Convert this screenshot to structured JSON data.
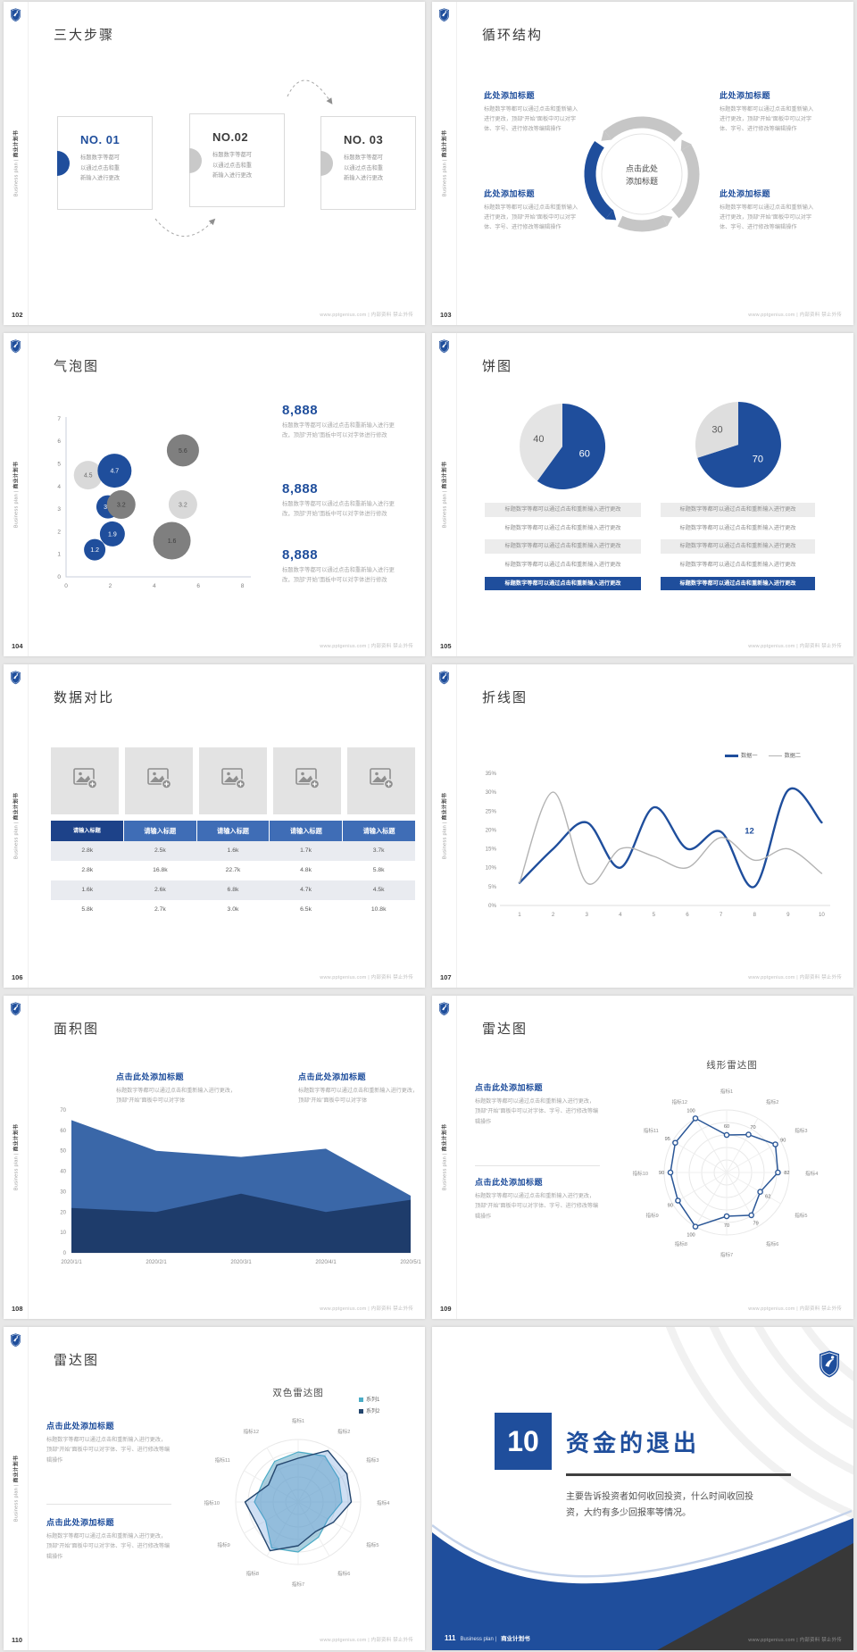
{
  "footer": {
    "url": "www.pptgenius.com | 内部资料 禁止外传"
  },
  "sidebar": {
    "en": "Business plan |",
    "zh": "商业计划书"
  },
  "slides": {
    "s102": {
      "page": "102",
      "title": "三大步骤",
      "steps": [
        {
          "no": "NO. 01",
          "body": "标题数字等都可\n以通过点击和重\n新输入进行更改"
        },
        {
          "no": "NO.02",
          "body": "标题数字等都可\n以通过点击和重\n新输入进行更改"
        },
        {
          "no": "NO. 03",
          "body": "标题数字等都可\n以通过点击和重\n新输入进行更改"
        }
      ]
    },
    "s103": {
      "page": "103",
      "title": "循环结构",
      "center": "点击此处\n添加标题",
      "blocks": [
        {
          "heading": "此处添加标题",
          "body": "标题数字等都可以通过点击和重新输入进行更改，顶部“开始”面板中可以对字体、字号、进行修改等编辑操作"
        },
        {
          "heading": "此处添加标题",
          "body": "标题数字等都可以通过点击和重新输入进行更改，顶部“开始”面板中可以对字体、字号、进行修改等编辑操作"
        },
        {
          "heading": "此处添加标题",
          "body": "标题数字等都可以通过点击和重新输入进行更改，顶部“开始”面板中可以对字体、字号、进行修改等编辑操作"
        },
        {
          "heading": "此处添加标题",
          "body": "标题数字等都可以通过点击和重新输入进行更改，顶部“开始”面板中可以对字体、字号、进行修改等编辑操作"
        }
      ]
    },
    "s104": {
      "page": "104",
      "title": "气泡图",
      "stats": [
        {
          "value": "8,888",
          "body": "标题数字等都可以通过点击和重新输入进行更改，顶部“开始”面板中可以对字体进行修改"
        },
        {
          "value": "8,888",
          "body": "标题数字等都可以通过点击和重新输入进行更改，顶部“开始”面板中可以对字体进行修改"
        },
        {
          "value": "8,888",
          "body": "标题数字等都可以通过点击和重新输入进行更改，顶部“开始”面板中可以对字体进行修改"
        }
      ]
    },
    "s105": {
      "page": "105",
      "title": "饼图",
      "rows": [
        "标题数字等都可以通过点击和重新输入进行更改",
        "标题数字等都可以通过点击和重新输入进行更改",
        "标题数字等都可以通过点击和重新输入进行更改",
        "标题数字等都可以通过点击和重新输入进行更改",
        "标题数字等都可以通过点击和重新输入进行更改"
      ]
    },
    "s106": {
      "page": "106",
      "title": "数据对比",
      "table": {
        "header": [
          "请输入标题",
          "请输入标题",
          "请输入标题",
          "请输入标题",
          "请输入标题"
        ],
        "rows": [
          [
            "2.8k",
            "2.5k",
            "1.6k",
            "1.7k",
            "3.7k"
          ],
          [
            "2.8k",
            "16.8k",
            "22.7k",
            "4.8k",
            "5.8k"
          ],
          [
            "1.6k",
            "2.6k",
            "6.8k",
            "4.7k",
            "4.5k"
          ],
          [
            "5.8k",
            "2.7k",
            "3.0k",
            "6.5k",
            "10.8k"
          ]
        ]
      }
    },
    "s107": {
      "page": "107",
      "title": "折线图"
    },
    "s108": {
      "page": "108",
      "title": "面积图",
      "blocks": [
        {
          "heading": "点击此处添加标题",
          "body": "标题数字等都可以通过点击和重新输入进行更改，顶部“开始”面板中可以对字体"
        },
        {
          "heading": "点击此处添加标题",
          "body": "标题数字等都可以通过点击和重新输入进行更改，顶部“开始”面板中可以对字体"
        }
      ]
    },
    "s109": {
      "page": "109",
      "title": "雷达图",
      "blocks": [
        {
          "heading": "点击此处添加标题",
          "body": "标题数字等都可以通过点击和重新输入进行更改，顶部“开始”面板中可以对字体、字号、进行修改等编辑操作"
        },
        {
          "heading": "点击此处添加标题",
          "body": "标题数字等都可以通过点击和重新输入进行更改，顶部“开始”面板中可以对字体、字号、进行修改等编辑操作"
        }
      ]
    },
    "s110": {
      "page": "110",
      "title": "雷达图",
      "blocks": [
        {
          "heading": "点击此处添加标题",
          "body": "标题数字等都可以通过点击和重新输入进行更改，顶部“开始”面板中可以对字体、字号、进行修改等编辑操作"
        },
        {
          "heading": "点击此处添加标题",
          "body": "标题数字等都可以通过点击和重新输入进行更改，顶部“开始”面板中可以对字体、字号、进行修改等编辑操作"
        }
      ]
    },
    "s111": {
      "page": "111",
      "num": "10",
      "title": "资金的退出",
      "body": "主要告诉投资者如何收回投资，什么时间收回投资，大约有多少回报率等情况。",
      "brand_en": "Business plan |",
      "brand_zh": "商业计划书"
    }
  },
  "chart_data": [
    {
      "id": "bubble104",
      "type": "scatter",
      "x_ticks": [
        0,
        2,
        4,
        6,
        8
      ],
      "y_ticks": [
        0,
        1,
        2,
        3,
        4,
        5,
        6,
        7
      ],
      "colors": {
        "blue": "#1f4e9c",
        "gray-dark": "#7f7f7f",
        "gray-light": "#d9d9d9"
      },
      "points": [
        {
          "x": 1.0,
          "y": 4.5,
          "r": 16,
          "v": "4.5",
          "c": "gray-light"
        },
        {
          "x": 2.2,
          "y": 4.7,
          "r": 19,
          "v": "4.7",
          "c": "blue"
        },
        {
          "x": 5.3,
          "y": 5.6,
          "r": 18,
          "v": "5.6",
          "c": "gray-dark"
        },
        {
          "x": 1.9,
          "y": 3.1,
          "r": 13,
          "v": "3.1",
          "c": "blue"
        },
        {
          "x": 2.5,
          "y": 3.2,
          "r": 16,
          "v": "3.2",
          "c": "gray-dark"
        },
        {
          "x": 5.3,
          "y": 3.2,
          "r": 16,
          "v": "3.2",
          "c": "gray-light"
        },
        {
          "x": 2.1,
          "y": 1.9,
          "r": 14,
          "v": "1.9",
          "c": "blue"
        },
        {
          "x": 1.3,
          "y": 1.2,
          "r": 12,
          "v": "1.2",
          "c": "blue"
        },
        {
          "x": 4.8,
          "y": 1.6,
          "r": 21,
          "v": "1.6",
          "c": "gray-dark"
        }
      ]
    },
    {
      "id": "pie105a",
      "type": "pie",
      "slices": [
        {
          "value": 60,
          "label": "60",
          "color": "#1f4e9c",
          "label_color": "#ffffff",
          "label_r": 26
        },
        {
          "value": 40,
          "label": "40",
          "color": "#e4e4e4",
          "label_color": "#5a5a5a",
          "label_r": 28
        }
      ]
    },
    {
      "id": "pie105b",
      "type": "pie",
      "slices": [
        {
          "value": 70,
          "label": "70",
          "color": "#1f4e9c",
          "label_color": "#ffffff",
          "label_r": 27
        },
        {
          "value": 30,
          "label": "30",
          "color": "#dedede",
          "label_color": "#5a5a5a",
          "label_r": 29
        }
      ]
    },
    {
      "id": "line107",
      "type": "line",
      "x": [
        1,
        2,
        3,
        4,
        5,
        6,
        7,
        8,
        9,
        10
      ],
      "y_tick_labels": [
        "0%",
        "5%",
        "10%",
        "15%",
        "20%",
        "25%",
        "30%",
        "35%"
      ],
      "series": [
        {
          "name": "数据一",
          "color": "#1f4e9c",
          "width": 2.4,
          "values": [
            6,
            15,
            22,
            10,
            26,
            15,
            19.5,
            5,
            30.5,
            22
          ]
        },
        {
          "name": "数据二",
          "color": "#b3b3b3",
          "width": 1.4,
          "values": [
            6,
            30,
            6,
            15,
            13,
            10,
            18,
            12,
            15,
            8.5
          ]
        }
      ],
      "annotation": {
        "text": "12",
        "x": 7.85,
        "y": 19
      }
    },
    {
      "id": "area108",
      "type": "area",
      "categories": [
        "2020/1/1",
        "2020/2/1",
        "2020/3/1",
        "2020/4/1",
        "2020/5/1"
      ],
      "y_ticks": [
        0,
        10,
        20,
        30,
        40,
        50,
        60,
        70
      ],
      "series": [
        {
          "color": "#3a67a8",
          "values": [
            65,
            50,
            47,
            51,
            28
          ]
        },
        {
          "color": "#1e3c6b",
          "values": [
            22,
            20,
            29,
            20,
            26
          ]
        }
      ]
    },
    {
      "id": "radar109",
      "type": "radar",
      "title": "线形雷达图",
      "max": 100,
      "axes": [
        "指标1",
        "指标2",
        "指标3",
        "指标4",
        "指标5",
        "指标6",
        "指标7",
        "指标8",
        "指标9",
        "指标10",
        "指标11",
        "指标12"
      ],
      "series": [
        {
          "color": "#2b5797",
          "values": [
            60,
            70,
            90,
            82,
            62,
            79,
            70,
            100,
            90,
            90,
            95,
            100
          ]
        }
      ]
    },
    {
      "id": "radar110",
      "type": "radar",
      "title": "双色雷达图",
      "max": 100,
      "axes": [
        "指标1",
        "指标2",
        "指标3",
        "指标4",
        "指标5",
        "指标6",
        "指标7",
        "指标8",
        "指标9",
        "指标10",
        "指标11",
        "指标12"
      ],
      "series": [
        {
          "name": "系列1",
          "color": "#4bacc6",
          "fill": "rgba(104,170,199,0.55)",
          "width": 1.2,
          "values": [
            80,
            85,
            75,
            70,
            55,
            65,
            80,
            85,
            60,
            70,
            65,
            75
          ]
        },
        {
          "name": "系列2",
          "color": "#24466e",
          "fill": "rgba(84,141,212,0.28)",
          "width": 1.4,
          "values": [
            70,
            95,
            90,
            85,
            65,
            55,
            70,
            90,
            75,
            85,
            55,
            68
          ]
        }
      ]
    }
  ]
}
